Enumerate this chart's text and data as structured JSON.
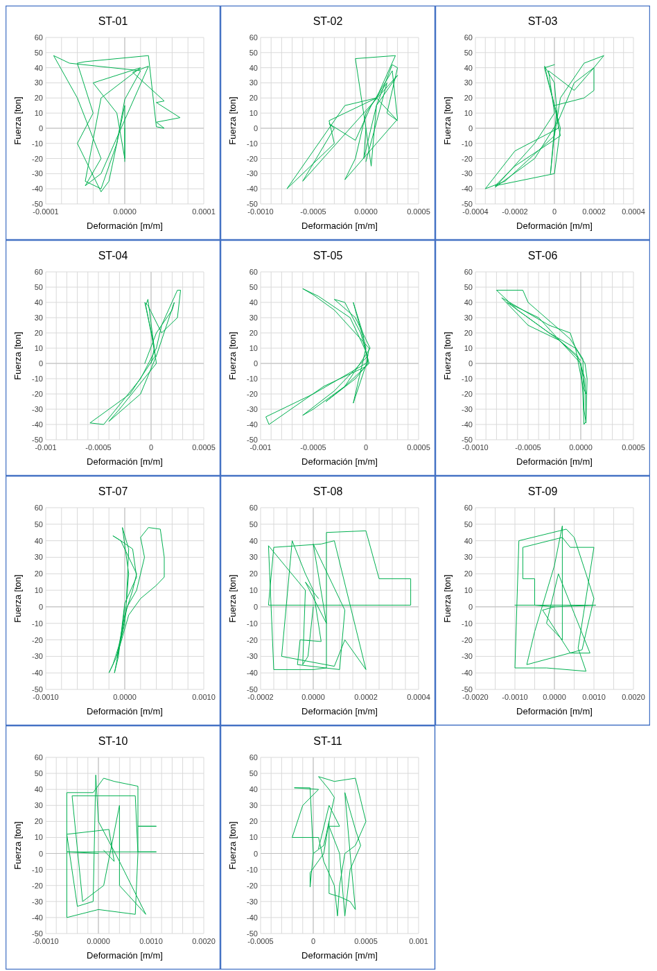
{
  "chart_data": [
    {
      "type": "line",
      "title": "ST-01",
      "xlabel": "Deformación [m/m]",
      "ylabel": "Fuerza [ton]",
      "grid": true,
      "xlim": [
        -0.0001,
        0.0001
      ],
      "ylim": [
        -50,
        60
      ],
      "xticks": [
        {
          "value": -0.0001,
          "label": "-0.0001"
        },
        {
          "value": -8e-05,
          "label": null
        },
        {
          "value": -6e-05,
          "label": null
        },
        {
          "value": -4e-05,
          "label": null
        },
        {
          "value": -2e-05,
          "label": null
        },
        {
          "value": 0,
          "label": "0.0000"
        },
        {
          "value": 2e-05,
          "label": null
        },
        {
          "value": 4e-05,
          "label": null
        },
        {
          "value": 6e-05,
          "label": null
        },
        {
          "value": 8e-05,
          "label": null
        },
        {
          "value": 0.0001,
          "label": "0.0001"
        }
      ],
      "yticks": [
        -50,
        -40,
        -30,
        -20,
        -10,
        0,
        10,
        20,
        30,
        40,
        50,
        60
      ],
      "x": [
        0,
        0,
        -1e-05,
        -4e-05,
        2e-05,
        -3e-05,
        -5e-05,
        -3e-05,
        -1e-05,
        0,
        2e-05,
        -7e-05,
        -9e-05,
        -6e-05,
        -3e-05,
        -5e-05,
        -3e-05,
        3e-05,
        1e-05,
        5e-05,
        4e-05,
        7e-05,
        4e-05,
        5e-05,
        4e-05,
        3e-05,
        -5e-05,
        -6e-05,
        -4e-05,
        -6e-05,
        -3e-05,
        -2e-05,
        0,
        0
      ],
      "series": [
        {
          "color": "#00b050",
          "values": [
            0,
            -20,
            10,
            30,
            40,
            20,
            -35,
            -40,
            -10,
            19,
            38,
            43,
            48,
            20,
            -20,
            -38,
            -30,
            41,
            37,
            18,
            17,
            7,
            4,
            0,
            1,
            48,
            44,
            43,
            10,
            -10,
            -42,
            -35,
            15,
            -22
          ]
        }
      ]
    },
    {
      "type": "line",
      "title": "ST-02",
      "xlabel": "Deformación [m/m]",
      "ylabel": "Fuerza [ton]",
      "grid": true,
      "xlim": [
        -0.001,
        0.0005
      ],
      "ylim": [
        -50,
        60
      ],
      "xticks": [
        {
          "value": -0.001,
          "label": "-0.0010"
        },
        {
          "value": -0.0009,
          "label": null
        },
        {
          "value": -0.0008,
          "label": null
        },
        {
          "value": -0.0007,
          "label": null
        },
        {
          "value": -0.0006,
          "label": null
        },
        {
          "value": -0.0005,
          "label": "-0.0005"
        },
        {
          "value": -0.0004,
          "label": null
        },
        {
          "value": -0.0003,
          "label": null
        },
        {
          "value": -0.0002,
          "label": null
        },
        {
          "value": -0.0001,
          "label": null
        },
        {
          "value": 0,
          "label": "0.0000"
        },
        {
          "value": 0.0001,
          "label": null
        },
        {
          "value": 0.0002,
          "label": null
        },
        {
          "value": 0.0003,
          "label": null
        },
        {
          "value": 0.0004,
          "label": null
        },
        {
          "value": 0.0005,
          "label": "0.0005"
        }
      ],
      "yticks": [
        -50,
        -40,
        -30,
        -20,
        -10,
        0,
        10,
        20,
        30,
        40,
        50,
        60
      ],
      "x": [
        0,
        -2e-05,
        0.0001,
        0.00025,
        0.0003,
        0.0002,
        0.0003,
        0.0001,
        -0.0002,
        -0.00075,
        -0.0003,
        -0.00035,
        -0.0002,
        0.0001,
        0.00028,
        -0.0001,
        0,
        5e-05,
        0.0001,
        0.0003,
        -0.0006,
        -0.0003,
        -0.00035,
        -0.0001,
        5e-05,
        0.00025,
        0.0003,
        0.0001,
        -0.0002,
        -0.0001,
        0,
        0.0002,
        0
      ],
      "series": [
        {
          "color": "#00b050",
          "values": [
            0,
            -20,
            15,
            42,
            40,
            10,
            5,
            20,
            15,
            -40,
            -10,
            5,
            10,
            20,
            48,
            46,
            0,
            -25,
            15,
            35,
            -35,
            0,
            3,
            -8,
            15,
            38,
            6,
            -10,
            -34,
            -20,
            10,
            30,
            -22
          ]
        }
      ]
    },
    {
      "type": "line",
      "title": "ST-03",
      "xlabel": "Deformación [m/m]",
      "ylabel": "Fuerza [ton]",
      "grid": true,
      "xlim": [
        -0.0004,
        0.0004
      ],
      "ylim": [
        -50,
        60
      ],
      "xticks": [
        {
          "value": -0.0004,
          "label": "-0.0004"
        },
        {
          "value": -0.00035,
          "label": null
        },
        {
          "value": -0.0003,
          "label": null
        },
        {
          "value": -0.00025,
          "label": null
        },
        {
          "value": -0.0002,
          "label": "-0.0002"
        },
        {
          "value": -0.00015,
          "label": null
        },
        {
          "value": -0.0001,
          "label": null
        },
        {
          "value": -5e-05,
          "label": null
        },
        {
          "value": 0,
          "label": "0"
        },
        {
          "value": 5e-05,
          "label": null
        },
        {
          "value": 0.0001,
          "label": null
        },
        {
          "value": 0.00015,
          "label": null
        },
        {
          "value": 0.0002,
          "label": "0.0002"
        },
        {
          "value": 0.00025,
          "label": null
        },
        {
          "value": 0.0003,
          "label": null
        },
        {
          "value": 0.00035,
          "label": null
        },
        {
          "value": 0.0004,
          "label": "0.0004"
        }
      ],
      "yticks": [
        -50,
        -40,
        -30,
        -20,
        -10,
        0,
        10,
        20,
        30,
        40,
        50,
        60
      ],
      "x": [
        0,
        -2e-05,
        1e-05,
        -5e-05,
        0,
        2e-05,
        -0.0002,
        -0.00035,
        -0.00025,
        0,
        3e-05,
        0.00015,
        0.00025,
        0.0002,
        0.0001,
        -3e-05,
        0,
        -0.0001,
        -0.0003,
        -0.0001,
        2e-05,
        0.0001,
        0.0002,
        0.0002,
        0.00015,
        0,
        3e-05,
        -0.0002,
        -0.0003,
        0,
        3e-05,
        -5e-05,
        0
      ],
      "series": [
        {
          "color": "#00b050",
          "values": [
            0,
            -30,
            10,
            41,
            30,
            0,
            -15,
            -40,
            -35,
            -5,
            20,
            43,
            48,
            40,
            25,
            38,
            10,
            -10,
            -39,
            -20,
            5,
            30,
            40,
            25,
            20,
            15,
            -5,
            -25,
            -38,
            -30,
            0,
            40,
            42
          ]
        }
      ]
    },
    {
      "type": "line",
      "title": "ST-04",
      "xlabel": "Deformación [m/m]",
      "ylabel": "Fuerza [ton]",
      "grid": true,
      "xlim": [
        -0.001,
        0.0005
      ],
      "ylim": [
        -50,
        60
      ],
      "xticks": [
        {
          "value": -0.001,
          "label": "-0.001"
        },
        {
          "value": -0.0009,
          "label": null
        },
        {
          "value": -0.0008,
          "label": null
        },
        {
          "value": -0.0007,
          "label": null
        },
        {
          "value": -0.0006,
          "label": null
        },
        {
          "value": -0.0005,
          "label": "-0.0005"
        },
        {
          "value": -0.0004,
          "label": null
        },
        {
          "value": -0.0003,
          "label": null
        },
        {
          "value": -0.0002,
          "label": null
        },
        {
          "value": -0.0001,
          "label": null
        },
        {
          "value": 0,
          "label": "0"
        },
        {
          "value": 0.0001,
          "label": null
        },
        {
          "value": 0.0002,
          "label": null
        },
        {
          "value": 0.0003,
          "label": null
        },
        {
          "value": 0.0004,
          "label": null
        },
        {
          "value": 0.0005,
          "label": "0.0005"
        }
      ],
      "yticks": [
        -50,
        -40,
        -30,
        -20,
        -10,
        0,
        10,
        20,
        30,
        40,
        50,
        60
      ],
      "x": [
        0,
        3e-05,
        -3e-05,
        -5e-05,
        0,
        4e-05,
        -0.0002,
        -0.00058,
        -0.00045,
        -0.0001,
        5e-05,
        0.0001,
        0.00025,
        0.00028,
        0.00025,
        0.0001,
        -3e-05,
        -6e-05,
        2e-05,
        5e-05,
        -0.0003,
        -0.0004,
        -0.0001,
        5e-05,
        0.00022,
        0.0002,
        5e-05,
        -6e-05
      ],
      "series": [
        {
          "color": "#00b050",
          "values": [
            0,
            10,
            42,
            38,
            20,
            5,
            -20,
            -39,
            -40,
            -10,
            10,
            25,
            48,
            48,
            30,
            20,
            38,
            40,
            15,
            0,
            -30,
            -38,
            -20,
            5,
            40,
            35,
            20,
            0
          ]
        }
      ]
    },
    {
      "type": "line",
      "title": "ST-05",
      "xlabel": "Deformación [m/m]",
      "ylabel": "Fuerza [ton]",
      "grid": true,
      "xlim": [
        -0.001,
        0.0005
      ],
      "ylim": [
        -50,
        60
      ],
      "xticks": [
        {
          "value": -0.001,
          "label": "-0.001"
        },
        {
          "value": -0.0009,
          "label": null
        },
        {
          "value": -0.0008,
          "label": null
        },
        {
          "value": -0.0007,
          "label": null
        },
        {
          "value": -0.0006,
          "label": null
        },
        {
          "value": -0.0005,
          "label": "-0.0005"
        },
        {
          "value": -0.0004,
          "label": null
        },
        {
          "value": -0.0003,
          "label": null
        },
        {
          "value": -0.0002,
          "label": null
        },
        {
          "value": -0.0001,
          "label": null
        },
        {
          "value": 0,
          "label": "0"
        },
        {
          "value": 0.0001,
          "label": null
        },
        {
          "value": 0.0002,
          "label": null
        },
        {
          "value": 0.0003,
          "label": null
        },
        {
          "value": 0.0004,
          "label": null
        },
        {
          "value": 0.0005,
          "label": "0.0005"
        }
      ],
      "yticks": [
        -50,
        -40,
        -30,
        -20,
        -10,
        0,
        10,
        20,
        30,
        40,
        50,
        60
      ],
      "x": [
        0,
        -0.0005,
        -0.00095,
        -0.00092,
        -0.0004,
        0,
        3e-05,
        -0.0003,
        -0.0005,
        -0.0006,
        -0.00045,
        -0.00015,
        2e-05,
        -0.0003,
        -0.0006,
        -0.0005,
        -0.0002,
        3e-05,
        -5e-05,
        -0.0002,
        -0.0003,
        -0.0001,
        4e-05,
        -0.0002,
        -0.00038,
        -0.0001,
        2e-05,
        -3e-05,
        -0.00012,
        0,
        -0.0001,
        -0.00012,
        2e-05
      ],
      "series": [
        {
          "color": "#00b050",
          "values": [
            0,
            -20,
            -35,
            -40,
            -15,
            -2,
            10,
            35,
            45,
            49,
            44,
            30,
            5,
            -18,
            -34,
            -30,
            -15,
            0,
            20,
            40,
            42,
            30,
            10,
            -15,
            -25,
            -10,
            0,
            20,
            40,
            10,
            -20,
            -26,
            3
          ]
        }
      ]
    },
    {
      "type": "line",
      "title": "ST-06",
      "xlabel": "Deformación [m/m]",
      "ylabel": "Fuerza [ton]",
      "grid": true,
      "xlim": [
        -0.001,
        0.0005
      ],
      "ylim": [
        -50,
        60
      ],
      "xticks": [
        {
          "value": -0.001,
          "label": "-0.0010"
        },
        {
          "value": -0.0009,
          "label": null
        },
        {
          "value": -0.0008,
          "label": null
        },
        {
          "value": -0.0007,
          "label": null
        },
        {
          "value": -0.0006,
          "label": null
        },
        {
          "value": -0.0005,
          "label": "-0.0005"
        },
        {
          "value": -0.0004,
          "label": null
        },
        {
          "value": -0.0003,
          "label": null
        },
        {
          "value": -0.0002,
          "label": null
        },
        {
          "value": -0.0001,
          "label": null
        },
        {
          "value": 0,
          "label": "0.0000"
        },
        {
          "value": 0.0001,
          "label": null
        },
        {
          "value": 0.0002,
          "label": null
        },
        {
          "value": 0.0003,
          "label": null
        },
        {
          "value": 0.0004,
          "label": null
        },
        {
          "value": 0.0005,
          "label": "0.0005"
        }
      ],
      "yticks": [
        -50,
        -40,
        -30,
        -20,
        -10,
        0,
        10,
        20,
        30,
        40,
        50,
        60
      ],
      "x": [
        0,
        2e-05,
        3e-05,
        5e-05,
        6e-05,
        4e-05,
        -5e-05,
        -0.0003,
        -0.0006,
        -0.0008,
        -0.00055,
        -0.0005,
        -0.0001,
        2e-05,
        3e-05,
        5e-05,
        4e-05,
        -3e-05,
        -0.0002,
        -0.0005,
        -0.00075,
        -0.0003,
        -0.0001,
        -5e-05,
        2e-05,
        5e-05,
        0,
        -0.0004,
        -0.0007,
        -0.0002,
        0
      ],
      "series": [
        {
          "color": "#00b050",
          "values": [
            0,
            -20,
            -40,
            -38,
            -10,
            0,
            10,
            20,
            35,
            48,
            48,
            40,
            16,
            3,
            -30,
            -39,
            -10,
            5,
            15,
            25,
            43,
            25,
            20,
            10,
            -15,
            -20,
            0,
            30,
            40,
            15,
            2
          ]
        }
      ]
    },
    {
      "type": "line",
      "title": "ST-07",
      "xlabel": "Deformación [m/m]",
      "ylabel": "Fuerza [ton]",
      "grid": true,
      "xlim": [
        -0.001,
        0.001
      ],
      "ylim": [
        -50,
        60
      ],
      "xticks": [
        {
          "value": -0.001,
          "label": "-0.0010"
        },
        {
          "value": -0.0008,
          "label": null
        },
        {
          "value": -0.0006,
          "label": null
        },
        {
          "value": -0.0004,
          "label": null
        },
        {
          "value": -0.0002,
          "label": null
        },
        {
          "value": 0,
          "label": "0.0000"
        },
        {
          "value": 0.0002,
          "label": null
        },
        {
          "value": 0.0004,
          "label": null
        },
        {
          "value": 0.0006,
          "label": null
        },
        {
          "value": 0.0008,
          "label": null
        },
        {
          "value": 0.001,
          "label": "0.0010"
        }
      ],
      "yticks": [
        -50,
        -40,
        -30,
        -20,
        -10,
        0,
        10,
        20,
        30,
        40,
        50,
        60
      ],
      "x": [
        0,
        -5e-05,
        -0.00015,
        -0.0002,
        -0.0001,
        0,
        0.0001,
        0.00015,
        5e-05,
        -5e-05,
        -0.00015,
        -5e-05,
        0.0001,
        0.00015,
        0,
        -8e-05,
        -0.00013,
        -5e-05,
        3e-05,
        0.00015,
        0.00025,
        0.0002,
        0.0003,
        0.00045,
        0.0005,
        0.0005,
        0.0004,
        0.0002,
        5e-05,
        -0.0001,
        0,
        5e-05,
        -3e-05,
        5e-05,
        2e-05
      ],
      "series": [
        {
          "color": "#00b050",
          "values": [
            0,
            -20,
            -35,
            -40,
            -30,
            -5,
            10,
            20,
            30,
            40,
            43,
            40,
            35,
            18,
            2,
            -30,
            -40,
            -20,
            0,
            10,
            30,
            42,
            48,
            47,
            30,
            18,
            13,
            5,
            -5,
            -30,
            -10,
            20,
            48,
            35,
            3
          ]
        }
      ]
    },
    {
      "type": "line",
      "title": "ST-08",
      "xlabel": "Deformación [m/m]",
      "ylabel": "Fuerza [ton]",
      "grid": true,
      "xlim": [
        -0.0002,
        0.0004
      ],
      "ylim": [
        -50,
        60
      ],
      "xticks": [
        {
          "value": -0.0002,
          "label": "-0.0002"
        },
        {
          "value": -0.00015,
          "label": null
        },
        {
          "value": -0.0001,
          "label": null
        },
        {
          "value": -5e-05,
          "label": null
        },
        {
          "value": 0,
          "label": "0.0000"
        },
        {
          "value": 5e-05,
          "label": null
        },
        {
          "value": 0.0001,
          "label": null
        },
        {
          "value": 0.00015,
          "label": null
        },
        {
          "value": 0.0002,
          "label": "0.0002"
        },
        {
          "value": 0.00025,
          "label": null
        },
        {
          "value": 0.0003,
          "label": null
        },
        {
          "value": 0.00035,
          "label": null
        },
        {
          "value": 0.0004,
          "label": "0.0004"
        }
      ],
      "yticks": [
        -50,
        -40,
        -30,
        -20,
        -10,
        0,
        10,
        20,
        30,
        40,
        50,
        60
      ],
      "x": [
        0,
        -2e-05,
        -4e-05,
        -3e-05,
        -0.00017,
        -0.00015,
        0,
        5e-05,
        5e-05,
        0.0002,
        0.00025,
        0.00037,
        0.00037,
        -0.00017,
        -0.00015,
        3e-05,
        8e-05,
        0.0002,
        0.00012,
        8e-05,
        -0.00012,
        -8e-05,
        -3e-05,
        0,
        3e-05,
        -5e-05,
        -6e-05,
        0.0001,
        0.00012,
        0,
        5e-05,
        -3e-05,
        2e-05
      ],
      "series": [
        {
          "color": "#00b050",
          "values": [
            0,
            -30,
            -35,
            10,
            37,
            -38,
            -38,
            -37,
            45,
            46,
            17,
            17,
            1,
            1,
            36,
            38,
            40,
            -38,
            -20,
            -36,
            -30,
            40,
            20,
            10,
            -21,
            -20,
            -35,
            -38,
            -2,
            38,
            -10,
            15,
            5
          ]
        }
      ]
    },
    {
      "type": "line",
      "title": "ST-09",
      "xlabel": "Deformación [m/m]",
      "ylabel": "Fuerza [ton]",
      "grid": true,
      "xlim": [
        -0.002,
        0.002
      ],
      "ylim": [
        -50,
        60
      ],
      "xticks": [
        {
          "value": -0.002,
          "label": "-0.0020"
        },
        {
          "value": -0.0015,
          "label": null
        },
        {
          "value": -0.001,
          "label": "-0.0010"
        },
        {
          "value": -0.0005,
          "label": null
        },
        {
          "value": 0,
          "label": "0.0000"
        },
        {
          "value": 0.0005,
          "label": null
        },
        {
          "value": 0.001,
          "label": "0.0010"
        },
        {
          "value": 0.0015,
          "label": null
        },
        {
          "value": 0.002,
          "label": "0.0020"
        }
      ],
      "yticks": [
        -50,
        -40,
        -30,
        -20,
        -10,
        0,
        10,
        20,
        30,
        40,
        50,
        60
      ],
      "x": [
        0,
        -0.0005,
        -0.0005,
        -0.0008,
        -0.0008,
        0.0002,
        0.0004,
        0.001,
        0.0006,
        0.0008,
        -0.0002,
        -0.001,
        -0.0009,
        0.0003,
        0.0005,
        0.0008,
        0.001,
        0.0007,
        -0.0007,
        -0.0005,
        0,
        0.0002,
        0.0002,
        -0.0002,
        0.0001,
        0.0006,
        0.0009,
        0.0004,
        -0.0003,
        0,
        0.00105,
        -0.001
      ],
      "series": [
        {
          "color": "#00b050",
          "values": [
            0,
            1,
            17,
            17,
            36,
            42,
            36,
            36,
            -25,
            -39,
            -37,
            -37,
            40,
            47,
            42,
            20,
            5,
            -26,
            -35,
            -15,
            25,
            49,
            -20,
            -10,
            20,
            -10,
            -28,
            -28,
            -2,
            0,
            1,
            1
          ]
        }
      ]
    },
    {
      "type": "line",
      "title": "ST-10",
      "xlabel": "Deformación [m/m]",
      "ylabel": "Fuerza [ton]",
      "grid": true,
      "xlim": [
        -0.001,
        0.002
      ],
      "ylim": [
        -50,
        60
      ],
      "xticks": [
        {
          "value": -0.001,
          "label": "-0.0010"
        },
        {
          "value": -0.0008,
          "label": null
        },
        {
          "value": -0.0006,
          "label": null
        },
        {
          "value": -0.0004,
          "label": null
        },
        {
          "value": -0.0002,
          "label": null
        },
        {
          "value": 0,
          "label": "0.0000"
        },
        {
          "value": 0.0002,
          "label": null
        },
        {
          "value": 0.0004,
          "label": null
        },
        {
          "value": 0.0006,
          "label": null
        },
        {
          "value": 0.0008,
          "label": null
        },
        {
          "value": 0.001,
          "label": "0.0010"
        },
        {
          "value": 0.0012,
          "label": null
        },
        {
          "value": 0.0014,
          "label": null
        },
        {
          "value": 0.0016,
          "label": null
        },
        {
          "value": 0.0018,
          "label": null
        },
        {
          "value": 0.002,
          "label": "0.0020"
        }
      ],
      "yticks": [
        -50,
        -40,
        -30,
        -20,
        -10,
        0,
        10,
        20,
        30,
        40,
        50,
        60
      ],
      "x": [
        0,
        -0.0006,
        0.0011,
        0.00075,
        0.00075,
        0.0011,
        0.00075,
        0.00075,
        0.0003,
        0.0001,
        -0.0001,
        -0.0006,
        -0.0006,
        0,
        0.0007,
        0.00075,
        0.0007,
        -0.0005,
        -0.0003,
        0.0001,
        0.0004,
        0.0004,
        0.0009,
        0.0004,
        0,
        -5e-05,
        -0.0001,
        -0.0004,
        -0.0006,
        0.0002,
        0.0003,
        0.0001
      ],
      "series": [
        {
          "color": "#00b050",
          "values": [
            0,
            1,
            1,
            1,
            17,
            17,
            17,
            42,
            45,
            47,
            38,
            38,
            -40,
            -35,
            -38,
            0,
            36,
            36,
            -30,
            -20,
            30,
            -20,
            -38,
            -5,
            20,
            49,
            -30,
            -33,
            12,
            15,
            -5,
            2
          ]
        }
      ]
    },
    {
      "type": "line",
      "title": "ST-11",
      "xlabel": "Deformación [m/m]",
      "ylabel": "Fuerza [ton]",
      "grid": true,
      "xlim": [
        -0.0005,
        0.001
      ],
      "ylim": [
        -50,
        60
      ],
      "xticks": [
        {
          "value": -0.0005,
          "label": "-0.0005"
        },
        {
          "value": -0.0004,
          "label": null
        },
        {
          "value": -0.0003,
          "label": null
        },
        {
          "value": -0.0002,
          "label": null
        },
        {
          "value": -0.0001,
          "label": null
        },
        {
          "value": 0,
          "label": "0"
        },
        {
          "value": 0.0001,
          "label": null
        },
        {
          "value": 0.0002,
          "label": null
        },
        {
          "value": 0.0003,
          "label": null
        },
        {
          "value": 0.0004,
          "label": null
        },
        {
          "value": 0.0005,
          "label": "0.0005"
        },
        {
          "value": 0.0006,
          "label": null
        },
        {
          "value": 0.0007,
          "label": null
        },
        {
          "value": 0.0008,
          "label": null
        },
        {
          "value": 0.0009,
          "label": null
        },
        {
          "value": 0.001,
          "label": "0.001"
        }
      ],
      "yticks": [
        -50,
        -40,
        -30,
        -20,
        -10,
        0,
        10,
        20,
        30,
        40,
        50,
        60
      ],
      "x": [
        0,
        0.0001,
        0.0002,
        0.00015,
        5e-05,
        0.0002,
        0.0004,
        0.0005,
        0.0004,
        0.0003,
        0.00025,
        0.00023,
        0.0002,
        0.0001,
        5e-05,
        -0.0002,
        -0.0001,
        5e-05,
        -0.00018,
        -3e-05,
        0,
        -3e-05,
        -3e-05,
        0.0001,
        0.00015,
        0.00015,
        0.00025,
        0.00035,
        0.0004,
        0.00035,
        0.0003,
        0.0004,
        0.00045,
        0.00035,
        0.0003,
        0.00025,
        0.00015,
        0.00025,
        0.00015,
        5e-05
      ],
      "series": [
        {
          "color": "#00b050",
          "values": [
            0,
            5,
            35,
            40,
            48,
            45,
            47,
            20,
            5,
            0,
            -20,
            -39,
            -20,
            -5,
            10,
            10,
            30,
            40,
            41,
            41,
            0,
            -21,
            -12,
            0,
            20,
            -25,
            -27,
            -30,
            -35,
            0,
            38,
            15,
            5,
            -10,
            -39,
            0,
            17,
            17,
            30,
            3
          ]
        }
      ]
    }
  ]
}
